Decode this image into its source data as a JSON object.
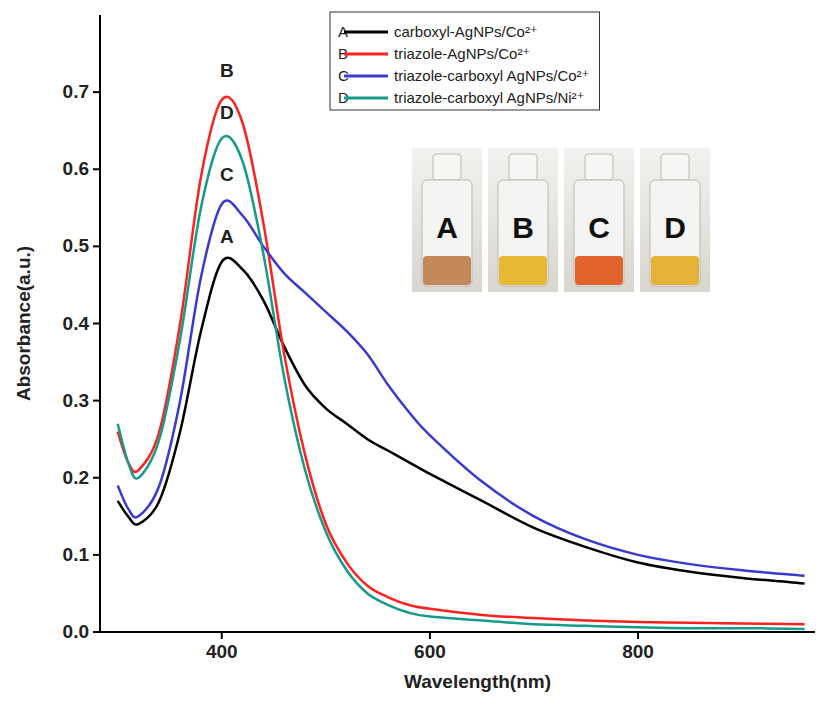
{
  "chart_data": {
    "type": "line",
    "x_label": "Wavelength(nm)",
    "y_label": "Absorbance(a.u.)",
    "xlim": [
      283,
      970
    ],
    "ylim": [
      0,
      0.8
    ],
    "xticks": [
      400,
      600,
      800
    ],
    "yticks": [
      {
        "value": 0,
        "label": "0.0"
      },
      0.1,
      0.2,
      0.3,
      0.4,
      0.5,
      0.6,
      0.7
    ],
    "legend": "upper right",
    "grid": false,
    "x": [
      300,
      310,
      320,
      340,
      360,
      380,
      400,
      420,
      440,
      460,
      480,
      500,
      520,
      540,
      560,
      580,
      600,
      650,
      700,
      750,
      800,
      850,
      900,
      960
    ],
    "series": [
      {
        "label": "A",
        "name": "carboxyl-AgNPs/Co²⁺",
        "color": "#000000",
        "values": [
          0.17,
          0.15,
          0.14,
          0.17,
          0.26,
          0.39,
          0.48,
          0.47,
          0.43,
          0.37,
          0.32,
          0.29,
          0.27,
          0.25,
          0.235,
          0.22,
          0.205,
          0.17,
          0.135,
          0.11,
          0.09,
          0.078,
          0.07,
          0.063
        ]
      },
      {
        "label": "B",
        "name": "triazole-AgNPs/Co²⁺",
        "color": "#ff2020",
        "values": [
          0.26,
          0.22,
          0.21,
          0.26,
          0.4,
          0.59,
          0.69,
          0.66,
          0.53,
          0.36,
          0.23,
          0.14,
          0.09,
          0.06,
          0.045,
          0.035,
          0.03,
          0.022,
          0.018,
          0.015,
          0.013,
          0.012,
          0.011,
          0.01
        ]
      },
      {
        "label": "C",
        "name": "triazole-carboxyl AgNPs/Co²⁺",
        "color": "#3a3ad0",
        "values": [
          0.19,
          0.16,
          0.15,
          0.19,
          0.3,
          0.46,
          0.555,
          0.54,
          0.5,
          0.465,
          0.44,
          0.415,
          0.39,
          0.36,
          0.32,
          0.285,
          0.255,
          0.195,
          0.15,
          0.12,
          0.1,
          0.088,
          0.08,
          0.073
        ]
      },
      {
        "label": "D",
        "name": "triazole-carboxyl AgNPs/Ni²⁺",
        "color": "#169a8a",
        "values": [
          0.27,
          0.22,
          0.2,
          0.25,
          0.38,
          0.55,
          0.64,
          0.61,
          0.49,
          0.33,
          0.21,
          0.13,
          0.08,
          0.05,
          0.035,
          0.025,
          0.02,
          0.015,
          0.01,
          0.008,
          0.006,
          0.005,
          0.005,
          0.004
        ]
      }
    ],
    "annotations": [
      {
        "text": "B",
        "x": 405,
        "y": 0.72
      },
      {
        "text": "D",
        "x": 405,
        "y": 0.665
      },
      {
        "text": "C",
        "x": 405,
        "y": 0.585
      },
      {
        "text": "A",
        "x": 405,
        "y": 0.505
      }
    ],
    "inset": {
      "labels": [
        "A",
        "B",
        "C",
        "D"
      ],
      "colors": [
        "#c4875a",
        "#e8b832",
        "#e2622c",
        "#e6b236"
      ]
    }
  }
}
